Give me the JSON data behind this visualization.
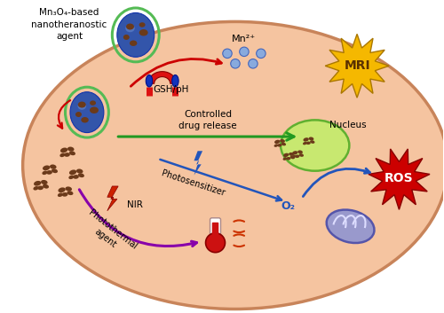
{
  "bg_color": "#FFFFFF",
  "cell_color": "#F5C4A0",
  "cell_edge_color": "#C8845A",
  "title_text": "Mn₃O₄-based\nnanotheranostic\nagent",
  "mn2plus_text": "Mn²⁺",
  "gsh_text": "GSH/pH",
  "controlled_text": "Controlled\ndrug release",
  "photosensitizer_text": "Photosensitizer",
  "nir_text": "NIR",
  "photothermal_text": "Photothermal\nagent",
  "o2_text": "O₂",
  "nucleus_text": "Nucleus",
  "mri_text": "MRI",
  "ros_text": "ROS"
}
